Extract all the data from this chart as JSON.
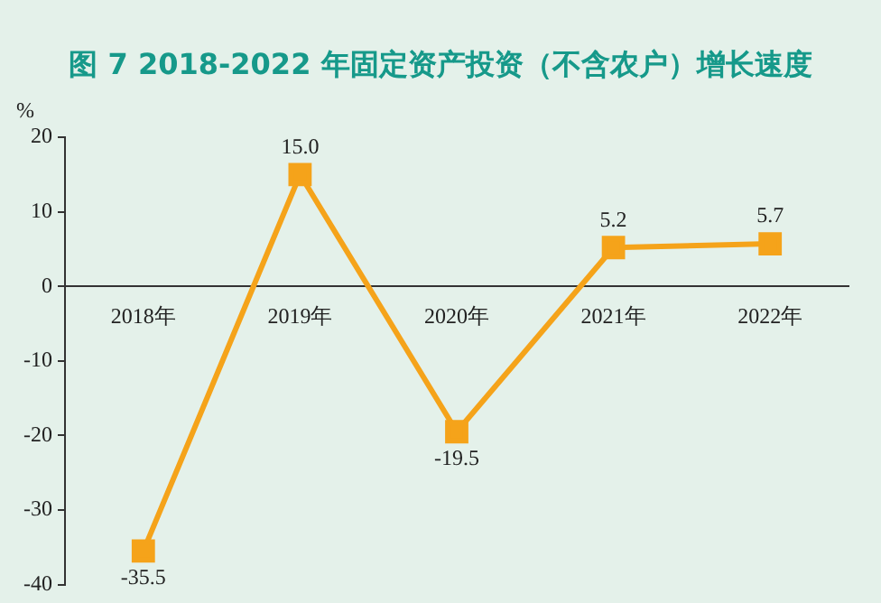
{
  "chart_data": {
    "type": "line",
    "title": "图 7  2018-2022 年固定资产投资（不含农户）增长速度",
    "ylabel": "%",
    "categories": [
      "2018年",
      "2019年",
      "2020年",
      "2021年",
      "2022年"
    ],
    "series": [
      {
        "color": "#f5a31a",
        "values": [
          -35.5,
          15.0,
          -19.5,
          5.2,
          5.7
        ],
        "value_labels": [
          "-35.5",
          "15.0",
          "-19.5",
          "5.2",
          "5.7"
        ]
      }
    ],
    "ylim": [
      -40,
      20
    ],
    "yticks": [
      -40,
      -30,
      -20,
      -10,
      0,
      10,
      20
    ],
    "grid": false,
    "legend": false,
    "marker": "square",
    "line_style": "solid"
  }
}
